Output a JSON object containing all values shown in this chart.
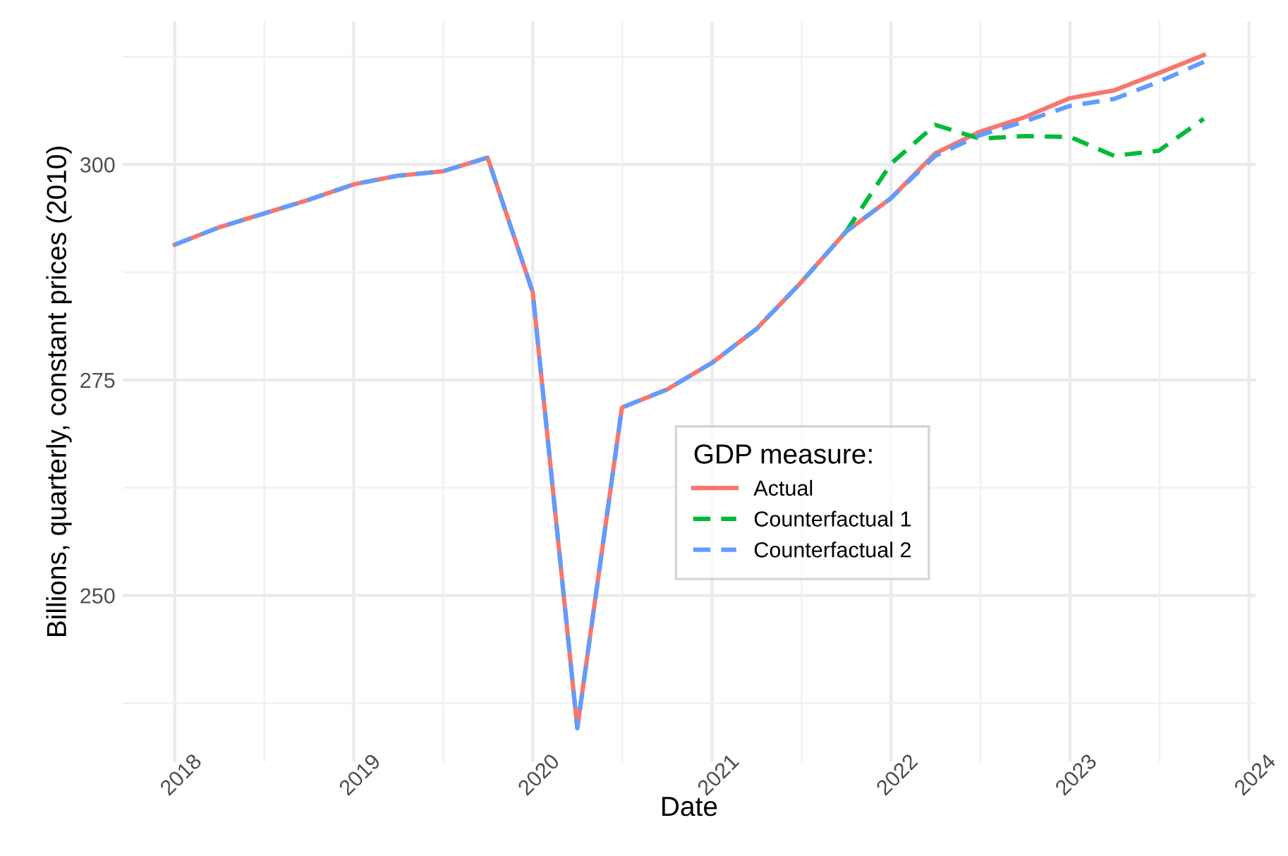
{
  "chart_data": {
    "type": "line",
    "xlabel": "Date",
    "ylabel": "Billions, quarterly, constant prices (2010)",
    "legend_title": "GDP measure:",
    "x": [
      "2018-01",
      "2018-04",
      "2018-07",
      "2018-10",
      "2019-01",
      "2019-04",
      "2019-07",
      "2019-10",
      "2020-01",
      "2020-04",
      "2020-07",
      "2020-10",
      "2021-01",
      "2021-04",
      "2021-07",
      "2021-10",
      "2022-01",
      "2022-04",
      "2022-07",
      "2022-10",
      "2023-01",
      "2023-04",
      "2023-07",
      "2023-10"
    ],
    "series": [
      {
        "name": "Actual",
        "color": "#f8766d",
        "line_style": "solid",
        "values": [
          290.7,
          292.7,
          294.3,
          295.9,
          297.7,
          298.7,
          299.2,
          300.8,
          285.2,
          234.6,
          271.8,
          273.9,
          277.0,
          280.9,
          286.3,
          292.2,
          296.1,
          301.3,
          303.8,
          305.5,
          307.7,
          308.6,
          310.6,
          312.7
        ]
      },
      {
        "name": "Counterfactual 1",
        "color": "#00ba38",
        "line_style": "dashed",
        "values": [
          null,
          null,
          null,
          null,
          null,
          null,
          null,
          null,
          null,
          null,
          null,
          null,
          null,
          null,
          null,
          292.2,
          300.1,
          304.6,
          303.0,
          303.3,
          303.2,
          301.0,
          301.6,
          305.3
        ]
      },
      {
        "name": "Counterfactual 2",
        "color": "#619cff",
        "line_style": "dashed",
        "values": [
          290.7,
          292.7,
          294.3,
          295.9,
          297.7,
          298.7,
          299.2,
          300.8,
          285.2,
          234.6,
          271.8,
          273.9,
          277.0,
          280.9,
          286.3,
          292.2,
          296.1,
          301.0,
          303.4,
          305.0,
          306.8,
          307.6,
          309.6,
          311.9
        ]
      }
    ],
    "xlim": [
      "2017-09-16",
      "2024-01-15"
    ],
    "xticks": [
      {
        "value": "2018-01-01",
        "label": "2018"
      },
      {
        "value": "2019-01-01",
        "label": "2019"
      },
      {
        "value": "2020-01-01",
        "label": "2020"
      },
      {
        "value": "2021-01-01",
        "label": "2021"
      },
      {
        "value": "2022-01-01",
        "label": "2022"
      },
      {
        "value": "2023-01-01",
        "label": "2023"
      },
      {
        "value": "2024-01-01",
        "label": "2024"
      }
    ],
    "ylim": [
      230.7,
      316.6
    ],
    "yticks": [
      250,
      275,
      300
    ],
    "grid": true,
    "legend": "center"
  }
}
